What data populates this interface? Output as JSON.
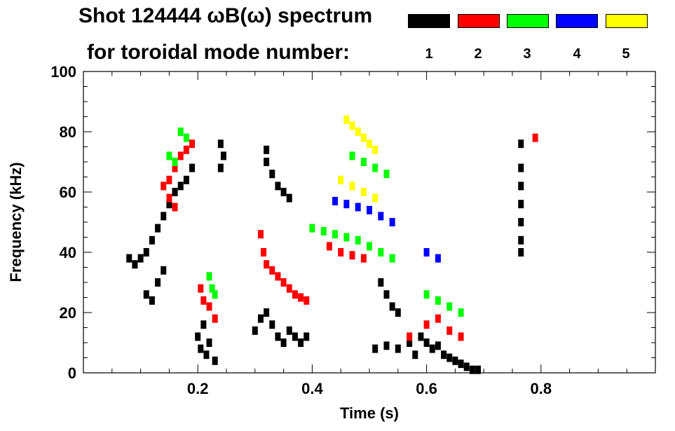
{
  "chart_data": {
    "type": "scatter",
    "title_line1": "Shot 124444 ωB(ω) spectrum",
    "title_line2": "for toroidal mode number:",
    "xlabel": "Time (s)",
    "ylabel": "Frequency (kHz)",
    "xlim": [
      0.0,
      1.0
    ],
    "ylim": [
      0,
      100
    ],
    "x_tick_labels": [
      "0.2",
      "0.4",
      "0.6",
      "0.8"
    ],
    "x_tick_values": [
      0.2,
      0.4,
      0.6,
      0.8
    ],
    "y_tick_labels": [
      "0",
      "20",
      "40",
      "60",
      "80",
      "100"
    ],
    "y_tick_values": [
      0,
      20,
      40,
      60,
      80,
      100
    ],
    "legend": [
      {
        "label": "1",
        "color": "#000000"
      },
      {
        "label": "2",
        "color": "#ff0000"
      },
      {
        "label": "3",
        "color": "#00ff00"
      },
      {
        "label": "4",
        "color": "#0000ff"
      },
      {
        "label": "5",
        "color": "#ffff00"
      }
    ],
    "series": [
      {
        "name": "1",
        "color": "#000000",
        "points": [
          [
            0.08,
            38
          ],
          [
            0.09,
            36
          ],
          [
            0.1,
            38
          ],
          [
            0.11,
            40
          ],
          [
            0.12,
            44
          ],
          [
            0.13,
            48
          ],
          [
            0.14,
            52
          ],
          [
            0.15,
            56
          ],
          [
            0.16,
            60
          ],
          [
            0.17,
            62
          ],
          [
            0.18,
            64
          ],
          [
            0.19,
            68
          ],
          [
            0.13,
            30
          ],
          [
            0.14,
            34
          ],
          [
            0.11,
            26
          ],
          [
            0.12,
            24
          ],
          [
            0.2,
            12
          ],
          [
            0.205,
            8
          ],
          [
            0.21,
            16
          ],
          [
            0.215,
            6
          ],
          [
            0.22,
            10
          ],
          [
            0.23,
            4
          ],
          [
            0.24,
            68
          ],
          [
            0.245,
            72
          ],
          [
            0.24,
            76
          ],
          [
            0.3,
            14
          ],
          [
            0.31,
            18
          ],
          [
            0.32,
            20
          ],
          [
            0.33,
            16
          ],
          [
            0.34,
            12
          ],
          [
            0.35,
            10
          ],
          [
            0.36,
            14
          ],
          [
            0.37,
            12
          ],
          [
            0.38,
            10
          ],
          [
            0.39,
            12
          ],
          [
            0.32,
            70
          ],
          [
            0.33,
            66
          ],
          [
            0.34,
            62
          ],
          [
            0.35,
            60
          ],
          [
            0.36,
            58
          ],
          [
            0.32,
            74
          ],
          [
            0.51,
            8
          ],
          [
            0.53,
            9
          ],
          [
            0.55,
            8
          ],
          [
            0.57,
            10
          ],
          [
            0.58,
            6
          ],
          [
            0.59,
            12
          ],
          [
            0.6,
            10
          ],
          [
            0.61,
            8
          ],
          [
            0.62,
            9
          ],
          [
            0.63,
            6
          ],
          [
            0.64,
            5
          ],
          [
            0.65,
            4
          ],
          [
            0.66,
            3
          ],
          [
            0.67,
            2
          ],
          [
            0.68,
            1
          ],
          [
            0.69,
            1
          ],
          [
            0.52,
            30
          ],
          [
            0.53,
            26
          ],
          [
            0.54,
            22
          ],
          [
            0.55,
            20
          ],
          [
            0.765,
            50
          ],
          [
            0.765,
            56
          ],
          [
            0.765,
            62
          ],
          [
            0.765,
            68
          ],
          [
            0.765,
            44
          ],
          [
            0.765,
            40
          ],
          [
            0.765,
            76
          ]
        ]
      },
      {
        "name": "2",
        "color": "#ff0000",
        "points": [
          [
            0.14,
            62
          ],
          [
            0.15,
            64
          ],
          [
            0.16,
            68
          ],
          [
            0.17,
            72
          ],
          [
            0.18,
            74
          ],
          [
            0.19,
            76
          ],
          [
            0.15,
            58
          ],
          [
            0.16,
            55
          ],
          [
            0.205,
            28
          ],
          [
            0.21,
            24
          ],
          [
            0.22,
            22
          ],
          [
            0.23,
            18
          ],
          [
            0.31,
            46
          ],
          [
            0.315,
            40
          ],
          [
            0.32,
            36
          ],
          [
            0.33,
            34
          ],
          [
            0.34,
            32
          ],
          [
            0.35,
            30
          ],
          [
            0.36,
            28
          ],
          [
            0.37,
            26
          ],
          [
            0.38,
            25
          ],
          [
            0.39,
            24
          ],
          [
            0.43,
            42
          ],
          [
            0.45,
            40
          ],
          [
            0.47,
            39
          ],
          [
            0.49,
            38
          ],
          [
            0.57,
            12
          ],
          [
            0.6,
            16
          ],
          [
            0.62,
            18
          ],
          [
            0.64,
            14
          ],
          [
            0.66,
            12
          ],
          [
            0.79,
            78
          ]
        ]
      },
      {
        "name": "3",
        "color": "#00ff00",
        "points": [
          [
            0.17,
            80
          ],
          [
            0.18,
            78
          ],
          [
            0.15,
            72
          ],
          [
            0.16,
            70
          ],
          [
            0.22,
            32
          ],
          [
            0.225,
            28
          ],
          [
            0.23,
            26
          ],
          [
            0.4,
            48
          ],
          [
            0.42,
            47
          ],
          [
            0.44,
            46
          ],
          [
            0.46,
            45
          ],
          [
            0.48,
            44
          ],
          [
            0.5,
            42
          ],
          [
            0.52,
            40
          ],
          [
            0.54,
            38
          ],
          [
            0.47,
            72
          ],
          [
            0.49,
            70
          ],
          [
            0.51,
            68
          ],
          [
            0.53,
            66
          ],
          [
            0.6,
            26
          ],
          [
            0.62,
            24
          ],
          [
            0.64,
            22
          ],
          [
            0.66,
            20
          ]
        ]
      },
      {
        "name": "4",
        "color": "#0000ff",
        "points": [
          [
            0.44,
            57
          ],
          [
            0.46,
            56
          ],
          [
            0.48,
            55
          ],
          [
            0.5,
            54
          ],
          [
            0.52,
            52
          ],
          [
            0.54,
            50
          ],
          [
            0.6,
            40
          ],
          [
            0.62,
            38
          ]
        ]
      },
      {
        "name": "5",
        "color": "#ffff00",
        "points": [
          [
            0.46,
            84
          ],
          [
            0.47,
            82
          ],
          [
            0.48,
            80
          ],
          [
            0.49,
            78
          ],
          [
            0.5,
            76
          ],
          [
            0.51,
            74
          ],
          [
            0.45,
            64
          ],
          [
            0.47,
            62
          ],
          [
            0.49,
            60
          ],
          [
            0.51,
            58
          ]
        ]
      }
    ]
  }
}
